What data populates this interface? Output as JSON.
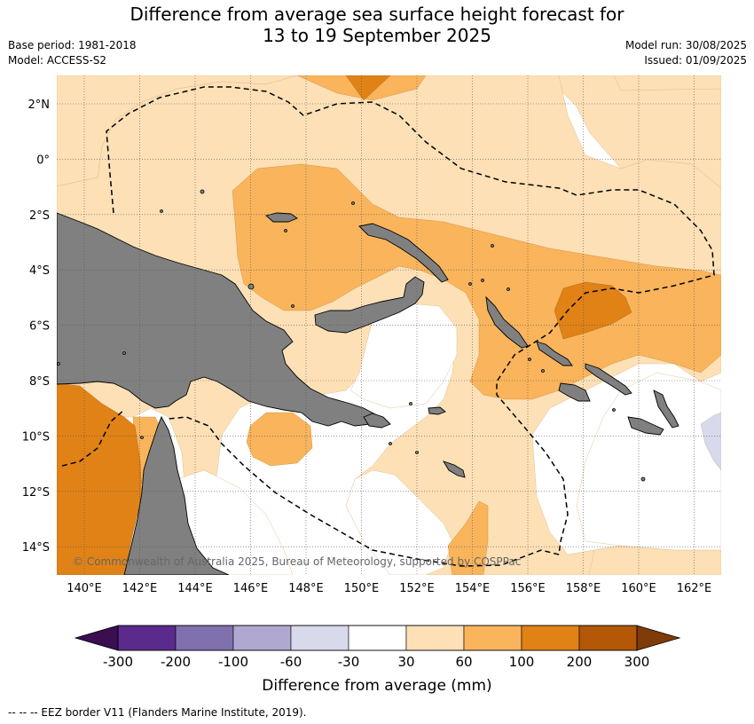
{
  "title": {
    "line1": "Difference from average sea surface height forecast for",
    "line2": "13 to 19 September 2025"
  },
  "meta_left": {
    "base_period": "Base period: 1981-2018",
    "model": "Model: ACCESS-S2"
  },
  "meta_right": {
    "model_run": "Model run: 30/08/2025",
    "issued": "Issued: 01/09/2025"
  },
  "lat_labels": [
    "2°N",
    "0°",
    "2°S",
    "4°S",
    "6°S",
    "8°S",
    "10°S",
    "12°S",
    "14°S"
  ],
  "lon_labels": [
    "140°E",
    "142°E",
    "144°E",
    "146°E",
    "148°E",
    "150°E",
    "152°E",
    "154°E",
    "156°E",
    "158°E",
    "160°E",
    "162°E"
  ],
  "copyright": "© Commonwealth of Australia 2025, Bureau of Meteorology, supported by COSPPac",
  "colorbar": {
    "title": "Difference from average (mm)",
    "ticks": [
      "-300",
      "-200",
      "-100",
      "-60",
      "-30",
      "30",
      "60",
      "100",
      "200",
      "300"
    ],
    "colors": [
      "#3b0e52",
      "#5b2a8c",
      "#8070ae",
      "#b1a8d2",
      "#d9d9ec",
      "#ffffff",
      "#fde0b6",
      "#f9b45c",
      "#e08216",
      "#b35807",
      "#7f3b08"
    ]
  },
  "footer": "--  --  -- EEZ border V11 (Flanders Marine Institute, 2019).",
  "colors": {
    "land": "#808080",
    "pale_orange": "#fde0b6",
    "light_orange": "#f9b45c",
    "orange": "#e08216",
    "pale_purple": "#d9d9ec"
  }
}
